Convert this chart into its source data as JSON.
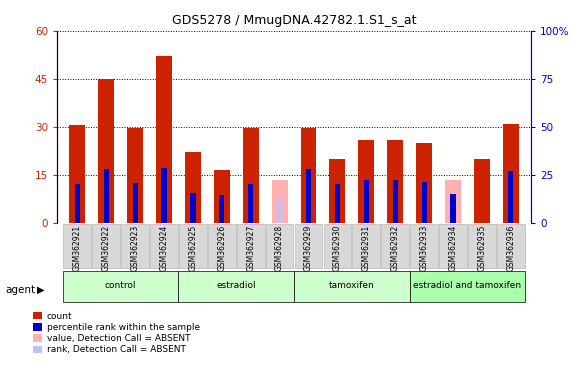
{
  "title": "GDS5278 / MmugDNA.42782.1.S1_s_at",
  "samples": [
    "GSM362921",
    "GSM362922",
    "GSM362923",
    "GSM362924",
    "GSM362925",
    "GSM362926",
    "GSM362927",
    "GSM362928",
    "GSM362929",
    "GSM362930",
    "GSM362931",
    "GSM362932",
    "GSM362933",
    "GSM362934",
    "GSM362935",
    "GSM362936"
  ],
  "count_values": [
    30.5,
    45.0,
    29.5,
    52.0,
    22.0,
    16.5,
    29.5,
    null,
    29.5,
    20.0,
    26.0,
    26.0,
    25.0,
    null,
    20.0,
    31.0
  ],
  "rank_values": [
    20.0,
    28.0,
    20.5,
    28.5,
    15.5,
    14.5,
    20.0,
    null,
    28.0,
    20.0,
    22.0,
    22.0,
    21.0,
    15.0,
    null,
    27.0
  ],
  "absent_count_values": [
    null,
    null,
    null,
    null,
    null,
    null,
    null,
    13.5,
    null,
    null,
    null,
    null,
    null,
    13.5,
    null,
    null
  ],
  "absent_rank_values": [
    null,
    null,
    null,
    null,
    null,
    null,
    null,
    13.5,
    null,
    null,
    null,
    null,
    null,
    null,
    null,
    null
  ],
  "groups": [
    {
      "label": "control",
      "start": 0,
      "end": 3,
      "color": "#ccffcc"
    },
    {
      "label": "estradiol",
      "start": 4,
      "end": 7,
      "color": "#ccffcc"
    },
    {
      "label": "tamoxifen",
      "start": 8,
      "end": 11,
      "color": "#ccffcc"
    },
    {
      "label": "estradiol and tamoxifen",
      "start": 12,
      "end": 15,
      "color": "#aaffaa"
    }
  ],
  "ylim_left": [
    0,
    60
  ],
  "ylim_right": [
    0,
    100
  ],
  "yticks_left": [
    0,
    15,
    30,
    45,
    60
  ],
  "yticks_right": [
    0,
    25,
    50,
    75,
    100
  ],
  "bar_width": 0.55,
  "rank_bar_width": 0.18,
  "count_color": "#cc2200",
  "rank_color": "#0000cc",
  "absent_count_color": "#ffb0b0",
  "absent_rank_color": "#c0c0ff",
  "bg_color": "#ffffff",
  "left_axis_color": "#cc2200",
  "right_axis_color": "#0000cc"
}
